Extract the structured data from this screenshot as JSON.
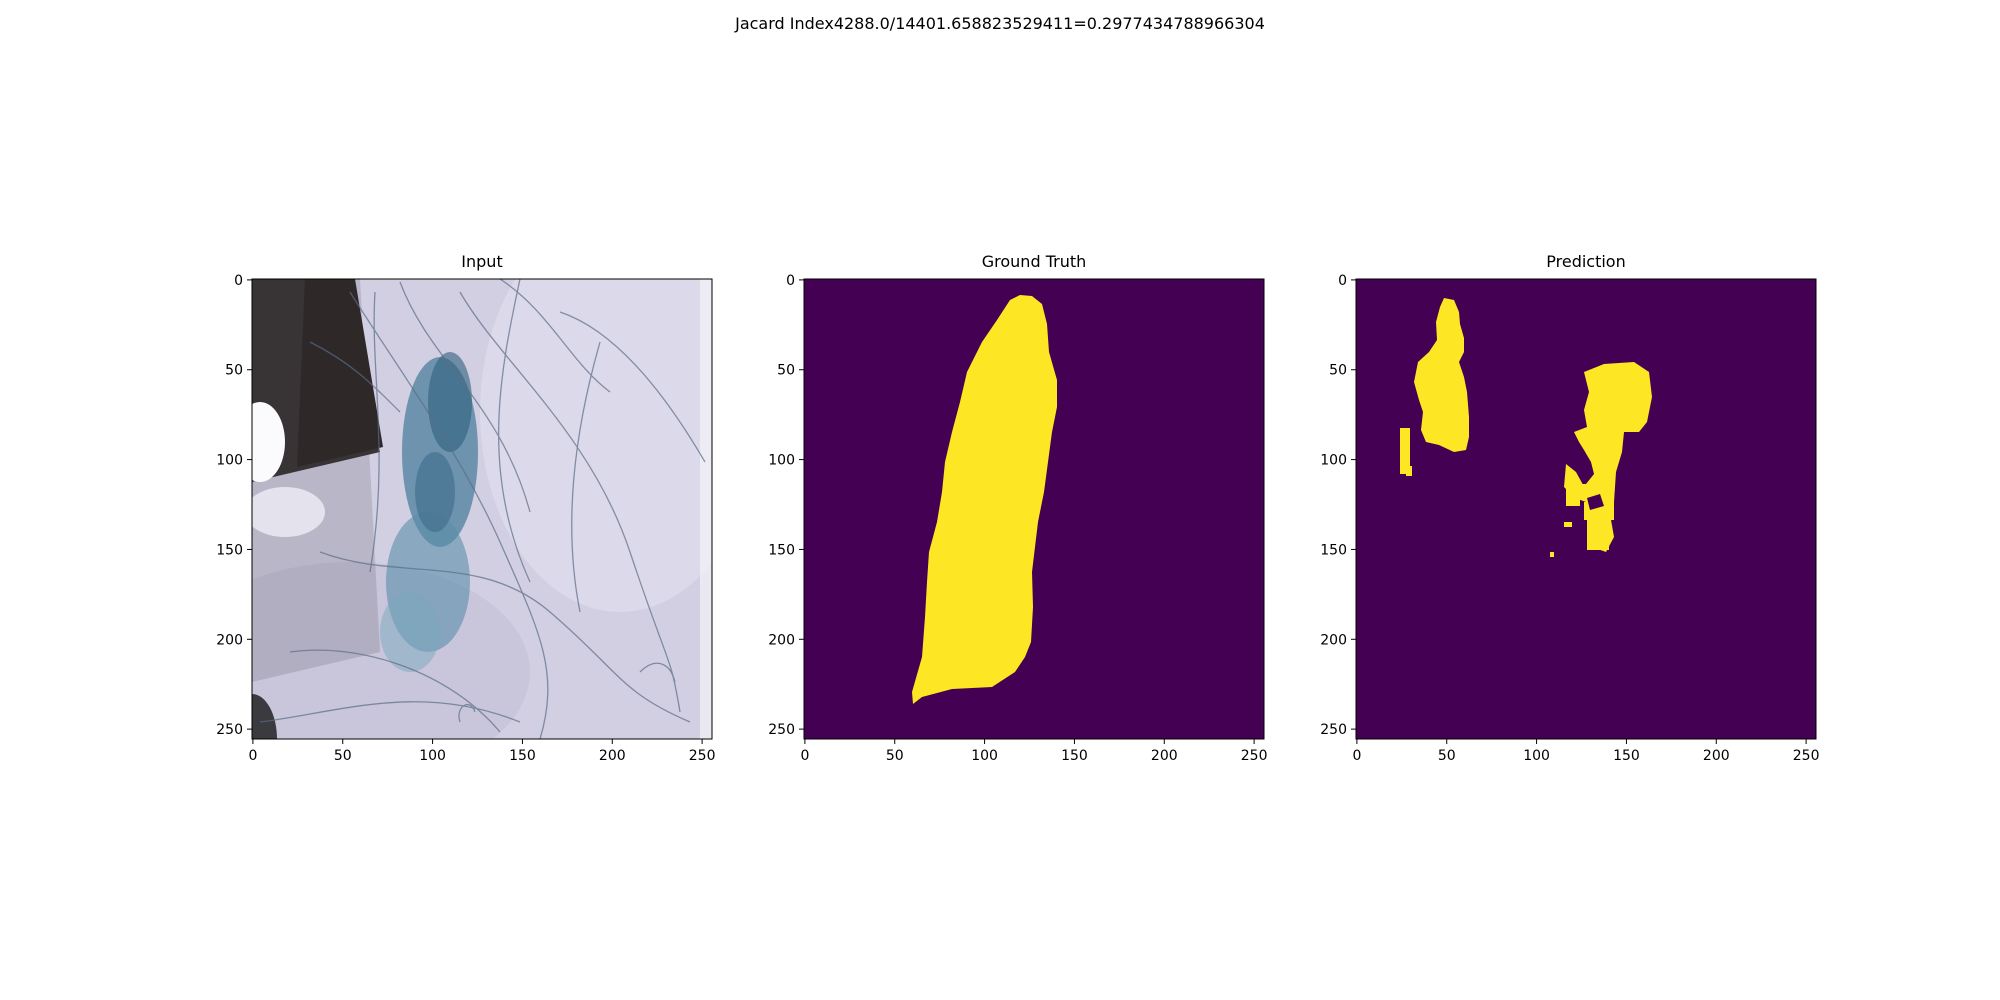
{
  "figure": {
    "suptitle": "Jacard Index4288.0/14401.658823529411=0.2977434788966304"
  },
  "panels": [
    {
      "title": "Input",
      "kind": "image"
    },
    {
      "title": "Ground Truth",
      "kind": "mask"
    },
    {
      "title": "Prediction",
      "kind": "mask"
    }
  ],
  "axes": {
    "x_ticks": [
      "0",
      "50",
      "100",
      "150",
      "200",
      "250"
    ],
    "y_ticks": [
      "0",
      "50",
      "100",
      "150",
      "200",
      "250"
    ]
  },
  "colors": {
    "mask_background": "#440154",
    "mask_foreground": "#fde725"
  }
}
